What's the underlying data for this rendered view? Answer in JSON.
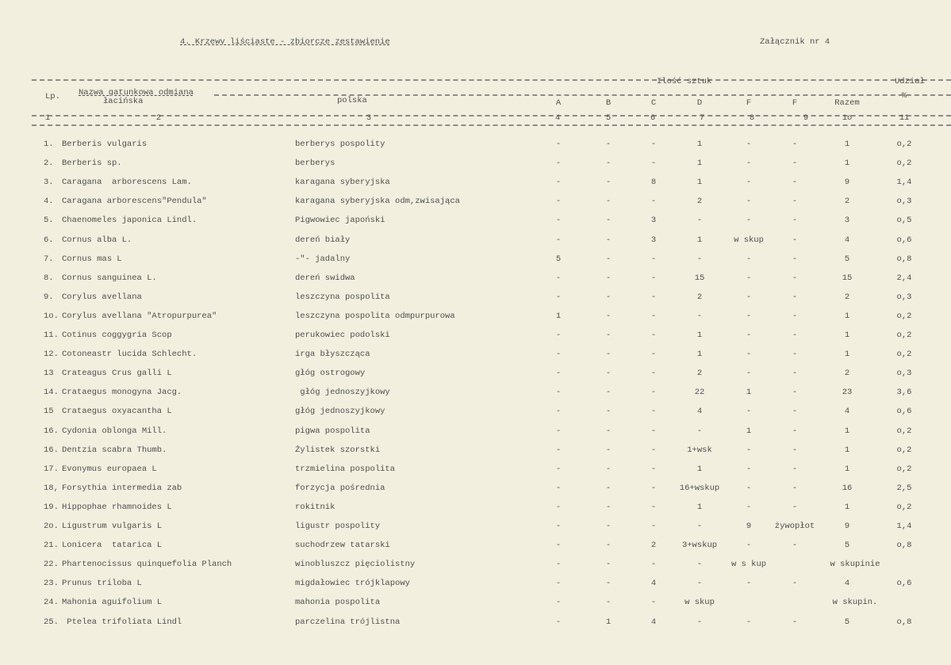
{
  "title": "4. Krzewy liściaste - zbiorcze zestawienie",
  "annex": "Załącznik nr 4",
  "header": {
    "lp": "Lp.",
    "name": "Nazwa gatunkowa odmiana",
    "latin": "łacińska",
    "polish": "polska",
    "quantity": "Ilość sztuk",
    "share": "Udział",
    "percent": "%",
    "cols": [
      "A",
      "B",
      "C",
      "D",
      "F",
      "F",
      "Razem"
    ],
    "numbers": [
      "1",
      "2",
      "3",
      "4",
      "5",
      "6",
      "7",
      "8",
      "9",
      "1o",
      "11"
    ]
  },
  "rows": [
    {
      "lp": "1.",
      "latin": "Berberis vulgaris",
      "polish": "berberys pospolity",
      "cells": [
        "-",
        "-",
        "-",
        "1",
        "-",
        "-",
        "1",
        "o,2"
      ]
    },
    {
      "lp": "2.",
      "latin": "Berberis sp.",
      "polish": "berberys",
      "cells": [
        "-",
        "-",
        "-",
        "1",
        "-",
        "-",
        "1",
        "o,2"
      ]
    },
    {
      "lp": "3.",
      "latin": "Caragana  arborescens Lam.",
      "polish": "karagana syberyjska",
      "cells": [
        "-",
        "-",
        "8",
        "1",
        "-",
        "-",
        "9",
        "1,4"
      ]
    },
    {
      "lp": "4.",
      "latin": "Caragana arborescens\"Pendula\"",
      "polish": "karagana syberyjska odm,zwisająca",
      "cells": [
        "-",
        "-",
        "-",
        "2",
        "-",
        "-",
        "2",
        "o,3"
      ]
    },
    {
      "lp": "5.",
      "latin": "Chaenomeles japonica Lindl.",
      "polish": "Pigwowiec japoński",
      "cells": [
        "-",
        "-",
        "3",
        "-",
        "-",
        "-",
        "3",
        "o,5"
      ]
    },
    {
      "lp": "6.",
      "latin": "Cornus alba L.",
      "polish": "dereń biały",
      "cells": [
        "-",
        "-",
        "3",
        "1",
        "w skup",
        "-",
        "4",
        "o,6"
      ]
    },
    {
      "lp": "7.",
      "latin": "Cornus mas L",
      "polish": "-\"- jadalny",
      "cells": [
        "5",
        "-",
        "-",
        "-",
        "-",
        "-",
        "5",
        "o,8"
      ]
    },
    {
      "lp": "8.",
      "latin": "Cornus sanguinea L.",
      "polish": "dereń swidwa",
      "cells": [
        "-",
        "-",
        "-",
        "15",
        "-",
        "-",
        "15",
        "2,4"
      ]
    },
    {
      "lp": "9.",
      "latin": "Corylus avellana",
      "polish": "leszczyna pospolita",
      "cells": [
        "-",
        "-",
        "-",
        "2",
        "-",
        "-",
        "2",
        "o,3"
      ]
    },
    {
      "lp": "1o.",
      "latin": "Corylus avellana \"Atropurpurea\"",
      "polish": "leszczyna pospolita odmpurpurowa",
      "cells": [
        "1",
        "-",
        "-",
        "-",
        "-",
        "-",
        "1",
        "o,2"
      ]
    },
    {
      "lp": "11.",
      "latin": "Cotinus coggygria Scop",
      "polish": "perukowiec podolski",
      "cells": [
        "-",
        "-",
        "-",
        "1",
        "-",
        "-",
        "1",
        "o,2"
      ]
    },
    {
      "lp": "12.",
      "latin": "Cotoneastr lucida Schlecht.",
      "polish": "irga błyszcząca",
      "cells": [
        "-",
        "-",
        "-",
        "1",
        "-",
        "-",
        "1",
        "o,2"
      ]
    },
    {
      "lp": "13",
      "latin": "Crateagus Crus galli L",
      "polish": "głóg ostrogowy",
      "cells": [
        "-",
        "-",
        "-",
        "2",
        "-",
        "-",
        "2",
        "o,3"
      ]
    },
    {
      "lp": "14.",
      "latin": "Crataegus monogyna Jacg.",
      "polish": " głóg jednoszyjkowy",
      "cells": [
        "-",
        "-",
        "-",
        "22",
        "1",
        "-",
        "23",
        "3,6"
      ]
    },
    {
      "lp": "15",
      "latin": "Crataegus oxyacantha L",
      "polish": "głóg jednoszyjkowy",
      "cells": [
        "-",
        "-",
        "-",
        "4",
        "-",
        "-",
        "4",
        "o,6"
      ]
    },
    {
      "lp": "16.",
      "latin": "Cydonia oblonga Mill.",
      "polish": "pigwa pospolita",
      "cells": [
        "-",
        "-",
        "-",
        "-",
        "1",
        "-",
        "1",
        "o,2"
      ]
    },
    {
      "lp": "16.",
      "latin": "Dentzia scabra Thumb.",
      "polish": "Żylistek szorstki",
      "cells": [
        "-",
        "-",
        "-",
        "1+wsk",
        "-",
        "-",
        "1",
        "o,2"
      ]
    },
    {
      "lp": "17.",
      "latin": "Evonymus europaea L",
      "polish": "trzmielina pospolita",
      "cells": [
        "-",
        "-",
        "-",
        "1",
        "-",
        "-",
        "1",
        "o,2"
      ]
    },
    {
      "lp": "18,",
      "latin": "Forsythia intermedia zab",
      "polish": "forzycja pośrednia",
      "cells": [
        "-",
        "-",
        "-",
        "16+wskup",
        "-",
        "-",
        "16",
        "2,5"
      ]
    },
    {
      "lp": "19.",
      "latin": "Hippophae rhamnoides L",
      "polish": "rokitnik",
      "cells": [
        "-",
        "-",
        "-",
        "1",
        "-",
        "-",
        "1",
        "o,2"
      ]
    },
    {
      "lp": "2o.",
      "latin": "Ligustrum vulgaris L",
      "polish": "ligustr pospolity",
      "cells": [
        "-",
        "-",
        "-",
        "-",
        "9",
        "żywopłot",
        "9",
        "1,4"
      ]
    },
    {
      "lp": "21.",
      "latin": "Lonicera  tatarica L",
      "polish": "suchodrzew tatarski",
      "cells": [
        "-",
        "-",
        "2",
        "3+wskup",
        "-",
        "-",
        "5",
        "o,8"
      ]
    },
    {
      "lp": "22.",
      "latin": "Phartenocissus quinquefolia Planch",
      "polish": "winobluszcz pięciolistny",
      "cells": [
        "-",
        "-",
        "-",
        "-",
        "w s kup",
        "",
        "w skupinie",
        ""
      ]
    },
    {
      "lp": "23.",
      "latin": "Prunus triloba L",
      "polish": "migdałowiec trójklapowy",
      "cells": [
        "-",
        "-",
        "4",
        "-",
        "-",
        "-",
        "4",
        "o,6"
      ]
    },
    {
      "lp": "24.",
      "latin": "Mahonia aguifolium L",
      "polish": "mahonia pospolita",
      "cells": [
        "-",
        "-",
        "-",
        "w skup",
        "",
        "",
        "w skupin.",
        ""
      ]
    },
    {
      "lp": "25.",
      "latin": " Ptelea trifoliata Lindl",
      "polish": "parczelina trójlistna",
      "cells": [
        "-",
        "1",
        "4",
        "-",
        "-",
        "-",
        "5",
        "o,8"
      ]
    }
  ]
}
